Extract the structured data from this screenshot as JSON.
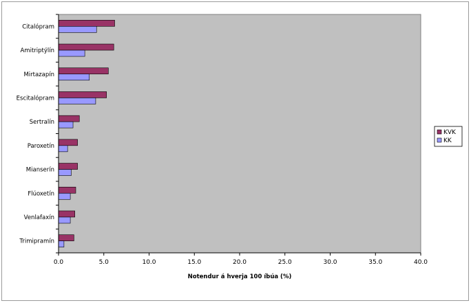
{
  "chart_data": {
    "type": "bar",
    "orientation": "horizontal",
    "categories": [
      "Citalópram",
      "Amitriptýlín",
      "Mirtazapín",
      "Escitalópram",
      "Sertralín",
      "Paroxetín",
      "Mianserín",
      "Flúoxetín",
      "Venlafaxín",
      "Trimipramín"
    ],
    "series": [
      {
        "name": "KVK",
        "color": "#993366",
        "values": [
          6.2,
          6.1,
          5.5,
          5.3,
          2.3,
          2.1,
          2.1,
          1.9,
          1.8,
          1.7
        ]
      },
      {
        "name": "KK",
        "color": "#9999ff",
        "values": [
          4.2,
          2.9,
          3.4,
          4.1,
          1.6,
          1.0,
          1.4,
          1.3,
          1.3,
          0.6
        ]
      }
    ],
    "xlabel": "Notendur á hverja 100 íbúa (%)",
    "xlim": [
      0,
      40
    ],
    "xticks": [
      "0.0",
      "5.0",
      "10.0",
      "15.0",
      "20.0",
      "25.0",
      "30.0",
      "35.0",
      "40.0"
    ],
    "plot_background": "#c0c0c0",
    "grid": false,
    "legend_position": "right"
  }
}
